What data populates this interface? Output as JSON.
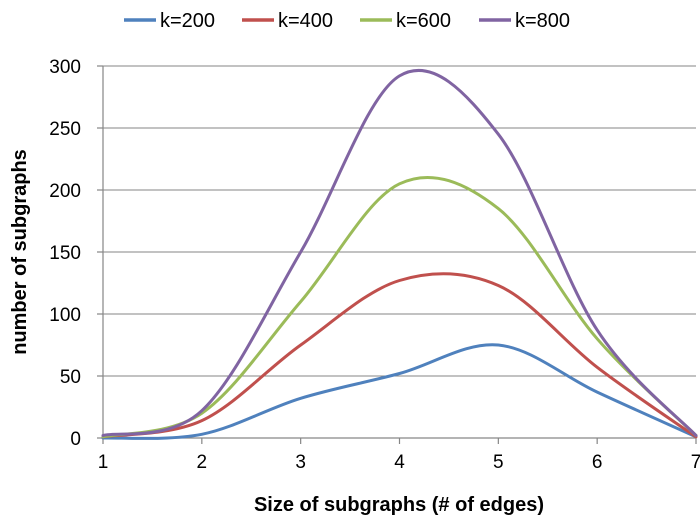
{
  "chart_data": {
    "type": "line",
    "title": "",
    "xlabel": "Size of subgraphs (# of edges)",
    "ylabel": "number of subgraphs",
    "xlim": [
      1,
      7
    ],
    "ylim": [
      0,
      300
    ],
    "x_ticks": [
      "1",
      "2",
      "3",
      "4",
      "5",
      "6",
      "7"
    ],
    "y_ticks": [
      "0",
      "50",
      "100",
      "150",
      "200",
      "250",
      "300"
    ],
    "grid": "horizontal",
    "legend_position": "top",
    "x": [
      1,
      2,
      3,
      4,
      5,
      6,
      7
    ],
    "series": [
      {
        "name": "k=200",
        "color": "#4F81BD",
        "values": [
          0,
          3,
          32,
          52,
          75,
          37,
          1
        ]
      },
      {
        "name": "k=400",
        "color": "#C0504D",
        "values": [
          1,
          14,
          75,
          127,
          123,
          57,
          1
        ]
      },
      {
        "name": "k=600",
        "color": "#9BBB59",
        "values": [
          1,
          20,
          110,
          205,
          185,
          80,
          2
        ]
      },
      {
        "name": "k=800",
        "color": "#8064A2",
        "values": [
          2,
          22,
          150,
          292,
          245,
          87,
          2
        ]
      }
    ]
  }
}
